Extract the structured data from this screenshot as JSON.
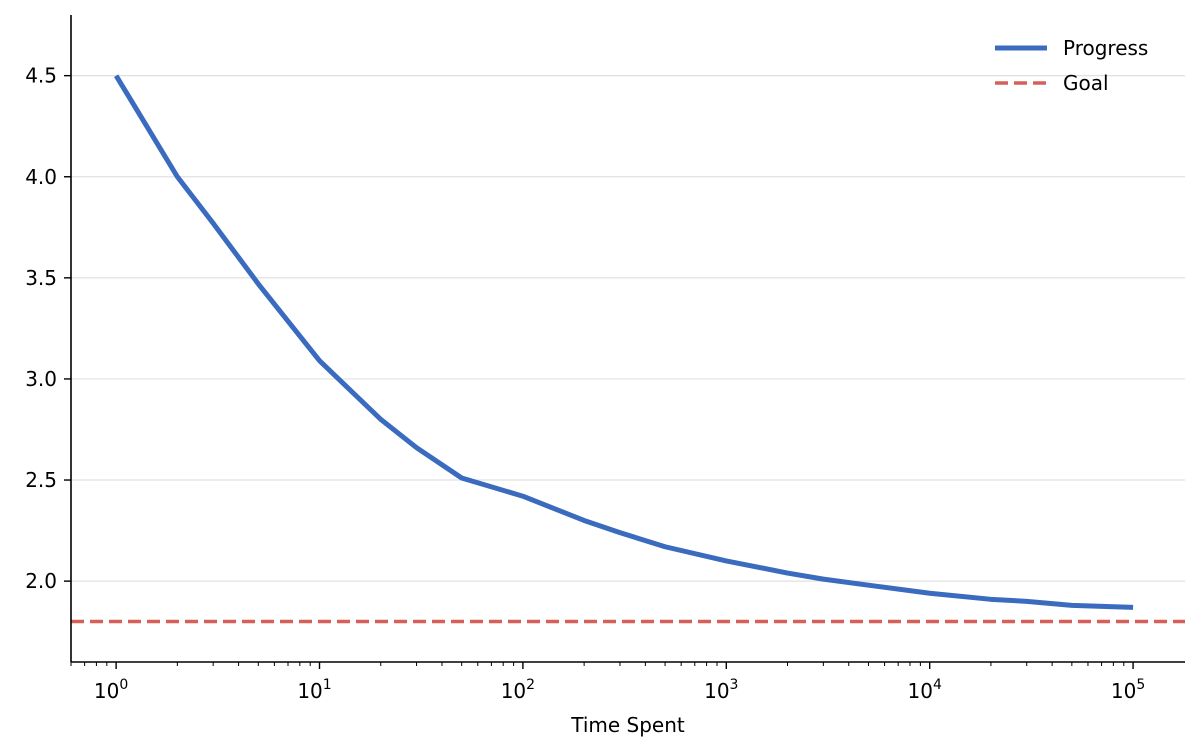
{
  "chart_data": {
    "type": "line",
    "title": "",
    "xlabel": "Time Spent",
    "ylabel": "",
    "x_scale": "log",
    "xlim": [
      0.6,
      180000
    ],
    "ylim": [
      1.6,
      4.8
    ],
    "grid": "horizontal",
    "legend_position": "top-right",
    "x_ticks": [
      {
        "value": 1,
        "base": "10",
        "exp": "0"
      },
      {
        "value": 10,
        "base": "10",
        "exp": "1"
      },
      {
        "value": 100,
        "base": "10",
        "exp": "2"
      },
      {
        "value": 1000,
        "base": "10",
        "exp": "3"
      },
      {
        "value": 10000,
        "base": "10",
        "exp": "4"
      },
      {
        "value": 100000,
        "base": "10",
        "exp": "5"
      }
    ],
    "y_ticks": [
      {
        "value": 2.0,
        "label": "2.0"
      },
      {
        "value": 2.5,
        "label": "2.5"
      },
      {
        "value": 3.0,
        "label": "3.0"
      },
      {
        "value": 3.5,
        "label": "3.5"
      },
      {
        "value": 4.0,
        "label": "4.0"
      },
      {
        "value": 4.5,
        "label": "4.5"
      }
    ],
    "series": [
      {
        "name": "Progress",
        "color": "#3a6bbf",
        "style": "solid",
        "x": [
          1,
          2,
          3,
          5,
          10,
          20,
          30,
          50,
          100,
          200,
          300,
          500,
          1000,
          2000,
          3000,
          5000,
          10000,
          20000,
          30000,
          50000,
          100000
        ],
        "y": [
          4.5,
          4.0,
          3.77,
          3.47,
          3.09,
          2.8,
          2.66,
          2.51,
          2.42,
          2.3,
          2.24,
          2.17,
          2.1,
          2.04,
          2.01,
          1.98,
          1.94,
          1.91,
          1.9,
          1.88,
          1.87
        ]
      },
      {
        "name": "Goal",
        "color": "#d65f5a",
        "style": "dashed",
        "x": [
          0.6,
          180000
        ],
        "y": [
          1.8,
          1.8
        ]
      }
    ]
  }
}
